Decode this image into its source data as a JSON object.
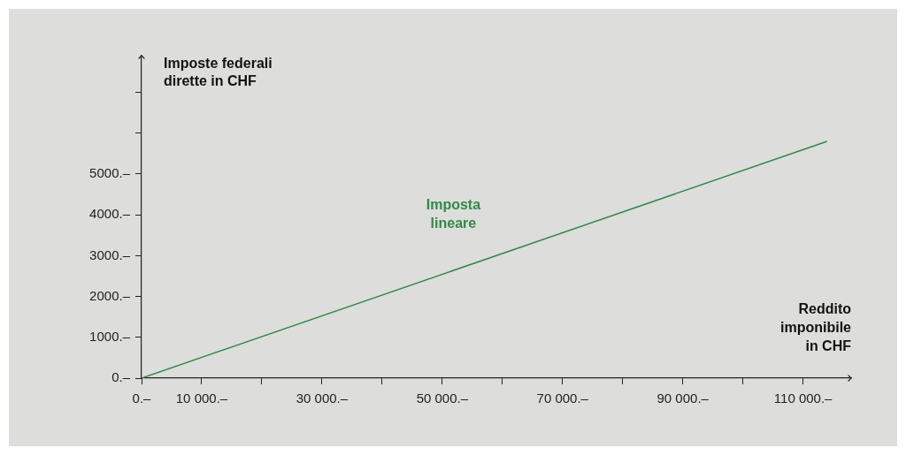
{
  "chart_data": {
    "type": "line",
    "xlabel": "Reddito imponibile in CHF",
    "ylabel": "Imposte federali dirette in CHF",
    "xlim": [
      0,
      118000
    ],
    "ylim": [
      0,
      7900
    ],
    "xticks": [
      {
        "value": 0,
        "label": "0.–"
      },
      {
        "value": 10000,
        "label": "10 000.–"
      },
      {
        "value": 20000,
        "label": null
      },
      {
        "value": 30000,
        "label": "30 000.–"
      },
      {
        "value": 40000,
        "label": null
      },
      {
        "value": 50000,
        "label": "50 000.–"
      },
      {
        "value": 60000,
        "label": null
      },
      {
        "value": 70000,
        "label": "70 000.–"
      },
      {
        "value": 80000,
        "label": null
      },
      {
        "value": 90000,
        "label": "90 000.–"
      },
      {
        "value": 100000,
        "label": null
      },
      {
        "value": 110000,
        "label": "110 000.–"
      }
    ],
    "yticks": [
      {
        "value": 0,
        "label": "0.–"
      },
      {
        "value": 1000,
        "label": "1000.–"
      },
      {
        "value": 2000,
        "label": "2000.–"
      },
      {
        "value": 3000,
        "label": "3000.–"
      },
      {
        "value": 4000,
        "label": "4000.–"
      },
      {
        "value": 5000,
        "label": "5000.–"
      },
      {
        "value": 6000,
        "label": null
      },
      {
        "value": 7000,
        "label": null
      }
    ],
    "series": [
      {
        "name": "Imposta lineare",
        "color": "#2e8b45",
        "x": [
          0,
          114000
        ],
        "values": [
          0,
          5800
        ]
      }
    ],
    "grid": false,
    "legend": false,
    "marker": "none",
    "line_style": "solid"
  }
}
